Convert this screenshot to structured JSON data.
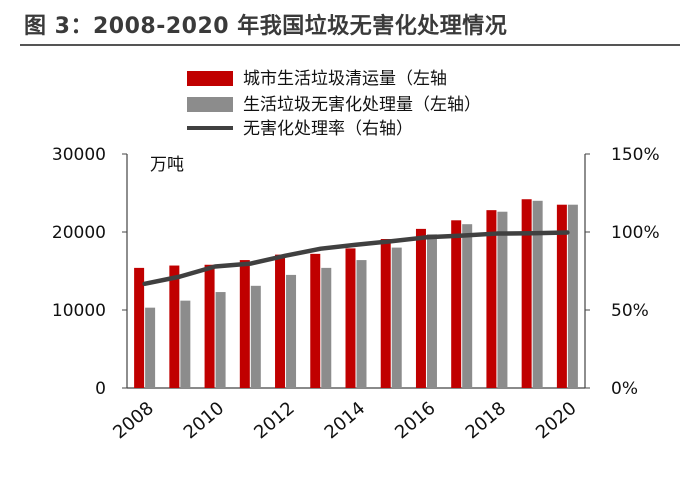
{
  "title": "图 3：2008-2020 年我国垃圾无害化处理情况",
  "chart_data": {
    "type": "bar",
    "x": [
      2008,
      2009,
      2010,
      2011,
      2012,
      2013,
      2014,
      2015,
      2016,
      2017,
      2018,
      2019,
      2020
    ],
    "xticks": [
      "2008",
      "2010",
      "2012",
      "2014",
      "2016",
      "2018",
      "2020"
    ],
    "series": [
      {
        "name": "城市生活垃圾清运量（左轴",
        "type": "bar",
        "axis": "left",
        "color": "#c00000",
        "values": [
          15400,
          15700,
          15800,
          16400,
          17100,
          17200,
          17900,
          19100,
          20400,
          21500,
          22800,
          24200,
          23500
        ]
      },
      {
        "name": "生活垃圾无害化处理量（左轴）",
        "type": "bar",
        "axis": "left",
        "color": "#8c8c8c",
        "values": [
          10300,
          11200,
          12300,
          13100,
          14500,
          15400,
          16400,
          18000,
          19700,
          21000,
          22600,
          24000,
          23500
        ]
      },
      {
        "name": "无害化处理率（右轴）",
        "type": "line",
        "axis": "right",
        "color": "#404040",
        "values": [
          66.8,
          71.4,
          77.9,
          79.7,
          84.8,
          89.3,
          91.8,
          94.1,
          96.6,
          97.7,
          99.0,
          99.2,
          99.7
        ]
      }
    ],
    "left_axis": {
      "unit": "万吨",
      "ylim": [
        0,
        30000
      ],
      "ticks": [
        "0",
        "10000",
        "20000",
        "30000"
      ]
    },
    "right_axis": {
      "ylim": [
        0,
        150
      ],
      "ticks": [
        "0%",
        "50%",
        "100%",
        "150%"
      ]
    },
    "legend_position": "top"
  }
}
